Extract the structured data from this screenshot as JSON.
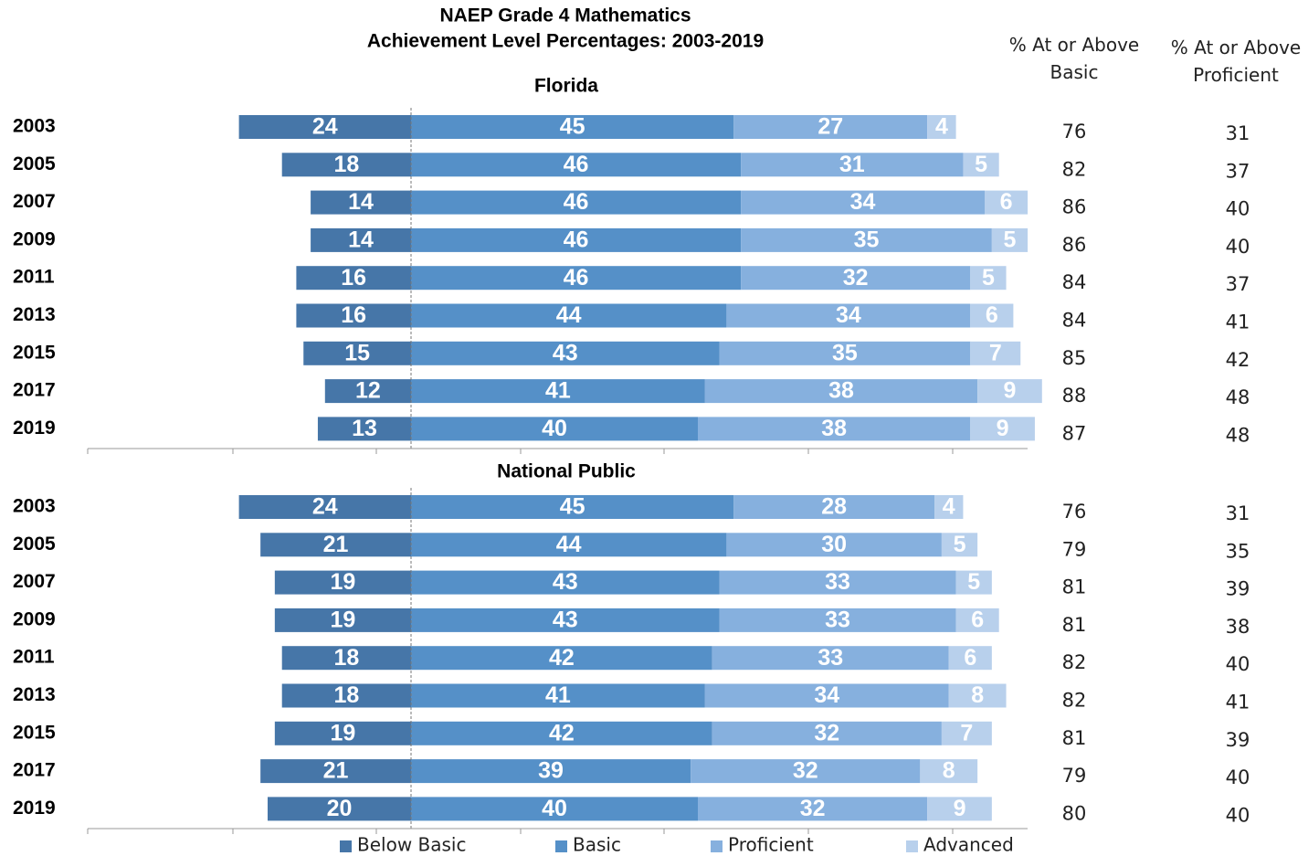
{
  "title": "NAEP Grade 4 Mathematics",
  "subtitle": "Achievement Level Percentages: 2003-2019",
  "column_headers": [
    "% At or Above Basic",
    "% At or Above Proficient"
  ],
  "chart_data": [
    {
      "type": "diverging_bar",
      "title": "Florida",
      "categories": [
        "2003",
        "2005",
        "2007",
        "2009",
        "2011",
        "2013",
        "2015",
        "2017",
        "2019"
      ],
      "series": [
        {
          "color": "#4676a8",
          "side": "negative",
          "values": [
            24,
            18,
            14,
            14,
            16,
            16,
            15,
            12,
            13
          ]
        },
        {
          "color": "#5590c8",
          "values": [
            45,
            46,
            46,
            46,
            46,
            44,
            43,
            41,
            40
          ]
        },
        {
          "color": "#86b0de",
          "values": [
            27,
            31,
            34,
            35,
            32,
            34,
            35,
            38,
            38
          ]
        },
        {
          "color": "#b8d0ec",
          "values": [
            4,
            5,
            6,
            5,
            5,
            6,
            7,
            9,
            9
          ]
        }
      ],
      "at_or_above_basic": [
        76,
        82,
        86,
        86,
        84,
        84,
        85,
        88,
        87
      ],
      "at_or_above_proficient": [
        31,
        37,
        40,
        40,
        37,
        41,
        42,
        48,
        48
      ]
    },
    {
      "type": "diverging_bar",
      "title": "National Public",
      "categories": [
        "2003",
        "2005",
        "2007",
        "2009",
        "2011",
        "2013",
        "2015",
        "2017",
        "2019"
      ],
      "series": [
        {
          "name": "Below Basic",
          "color": "#4676a8",
          "side": "negative",
          "values": [
            24,
            21,
            19,
            19,
            18,
            18,
            19,
            21,
            20
          ]
        },
        {
          "name": "Basic",
          "color": "#5590c8",
          "values": [
            45,
            44,
            43,
            43,
            42,
            41,
            42,
            39,
            40
          ]
        },
        {
          "name": "Proficient",
          "color": "#86b0de",
          "values": [
            28,
            30,
            33,
            33,
            33,
            34,
            32,
            32,
            32
          ]
        },
        {
          "name": "Advanced",
          "color": "#b8d0ec",
          "values": [
            4,
            5,
            5,
            6,
            6,
            8,
            7,
            8,
            9
          ]
        }
      ],
      "at_or_above_basic": [
        76,
        79,
        81,
        81,
        82,
        82,
        81,
        79,
        80
      ],
      "at_or_above_proficient": [
        31,
        35,
        39,
        38,
        40,
        41,
        39,
        40,
        40
      ]
    }
  ]
}
